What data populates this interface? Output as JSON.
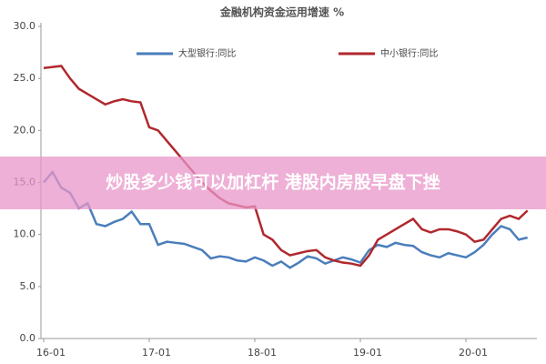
{
  "chart_data": {
    "type": "line",
    "title": "金融机构资金运用增速 %",
    "categories": [
      "16-01",
      null,
      null,
      null,
      null,
      null,
      null,
      null,
      null,
      null,
      null,
      null,
      "17-01",
      null,
      null,
      null,
      null,
      null,
      null,
      null,
      null,
      null,
      null,
      null,
      "18-01",
      null,
      null,
      null,
      null,
      null,
      null,
      null,
      null,
      null,
      null,
      null,
      "19-01",
      null,
      null,
      null,
      null,
      null,
      null,
      null,
      null,
      null,
      null,
      null,
      "20-01",
      null,
      null,
      null,
      null,
      null,
      null,
      null
    ],
    "series": [
      {
        "name": "大型银行:同比",
        "color": "#4a7ebb",
        "values": [
          15.0,
          16.0,
          14.5,
          14.0,
          12.5,
          13.0,
          11.0,
          10.8,
          11.2,
          11.5,
          12.2,
          11.0,
          11.0,
          9.0,
          9.3,
          9.2,
          9.1,
          8.8,
          8.5,
          7.7,
          7.9,
          7.8,
          7.5,
          7.4,
          7.8,
          7.5,
          7.0,
          7.4,
          6.8,
          7.3,
          7.9,
          7.7,
          7.2,
          7.5,
          7.8,
          7.6,
          7.3,
          8.5,
          9.0,
          8.8,
          9.2,
          9.0,
          8.9,
          8.3,
          8.0,
          7.8,
          8.2,
          8.0,
          7.8,
          8.3,
          9.0,
          10.0,
          10.8,
          10.5,
          9.5,
          9.7
        ]
      },
      {
        "name": "中小银行:同比",
        "color": "#b0282e",
        "values": [
          26.0,
          26.1,
          26.2,
          25.0,
          24.0,
          23.5,
          23.0,
          22.5,
          22.8,
          23.0,
          22.8,
          22.7,
          20.3,
          20.0,
          19.0,
          18.0,
          17.0,
          16.0,
          15.0,
          14.2,
          13.5,
          13.0,
          12.8,
          12.6,
          12.7,
          10.0,
          9.5,
          8.5,
          8.0,
          8.2,
          8.4,
          8.5,
          7.8,
          7.5,
          7.3,
          7.2,
          7.0,
          8.0,
          9.5,
          10.0,
          10.5,
          11.0,
          11.5,
          10.5,
          10.2,
          10.5,
          10.5,
          10.3,
          10.0,
          9.3,
          9.5,
          10.5,
          11.5,
          11.8,
          11.5,
          12.3
        ]
      }
    ],
    "ylim": [
      0,
      30
    ],
    "yticks": [
      {
        "value": 0,
        "label": "0.0"
      },
      {
        "value": 5,
        "label": "5.0"
      },
      {
        "value": 10,
        "label": "10.0"
      },
      {
        "value": 15,
        "label": "15.0"
      },
      {
        "value": 20,
        "label": "20.0"
      },
      {
        "value": 25,
        "label": "25.0"
      },
      {
        "value": 30,
        "label": "30.0"
      }
    ],
    "grid": false
  },
  "banner": "炒股多少钱可以加杠杆 港股内房股早盘下挫"
}
